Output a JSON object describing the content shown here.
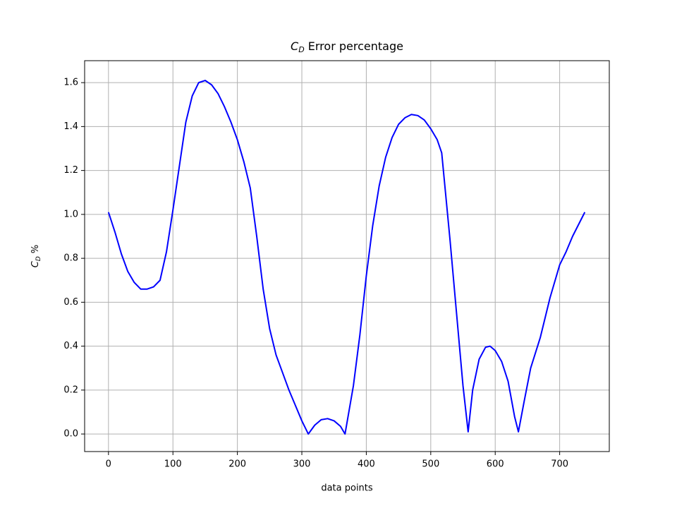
{
  "chart_data": {
    "type": "line",
    "title": {
      "symbol": "C",
      "subscript": "D",
      "text": " Error percentage"
    },
    "xlabel": "data points",
    "ylabel": {
      "symbol": "C",
      "subscript": "D",
      "text": " %"
    },
    "x": [
      0,
      10,
      20,
      30,
      40,
      50,
      60,
      70,
      80,
      90,
      100,
      110,
      120,
      130,
      140,
      150,
      160,
      170,
      180,
      190,
      200,
      210,
      220,
      230,
      240,
      250,
      260,
      270,
      280,
      290,
      300,
      310,
      320,
      330,
      340,
      350,
      360,
      367,
      380,
      390,
      400,
      410,
      420,
      430,
      440,
      450,
      460,
      470,
      480,
      490,
      500,
      510,
      517,
      530,
      540,
      550,
      558,
      565,
      575,
      585,
      592,
      600,
      610,
      620,
      630,
      636,
      645,
      655,
      670,
      685,
      700,
      710,
      720,
      739
    ],
    "values": [
      1.01,
      0.92,
      0.82,
      0.74,
      0.69,
      0.66,
      0.66,
      0.67,
      0.7,
      0.83,
      1.02,
      1.22,
      1.42,
      1.54,
      1.6,
      1.61,
      1.59,
      1.55,
      1.49,
      1.42,
      1.34,
      1.24,
      1.12,
      0.9,
      0.66,
      0.48,
      0.36,
      0.28,
      0.2,
      0.13,
      0.06,
      0.0,
      0.04,
      0.065,
      0.07,
      0.06,
      0.035,
      0.0,
      0.22,
      0.45,
      0.72,
      0.95,
      1.13,
      1.26,
      1.35,
      1.41,
      1.44,
      1.455,
      1.45,
      1.43,
      1.39,
      1.34,
      1.28,
      0.88,
      0.55,
      0.22,
      0.01,
      0.2,
      0.34,
      0.395,
      0.4,
      0.38,
      0.33,
      0.24,
      0.08,
      0.01,
      0.15,
      0.3,
      0.44,
      0.62,
      0.77,
      0.83,
      0.9,
      1.01
    ],
    "color": "#0000ff",
    "xlim": [
      -37,
      777
    ],
    "ylim": [
      -0.08,
      1.7
    ],
    "xticks": [
      0,
      100,
      200,
      300,
      400,
      500,
      600,
      700
    ],
    "yticks": [
      {
        "value": 0,
        "label": "0.0"
      },
      0.2,
      0.4,
      0.6,
      0.8,
      {
        "value": 1,
        "label": "1.0"
      },
      1.2,
      1.4,
      1.6
    ],
    "grid": true
  }
}
